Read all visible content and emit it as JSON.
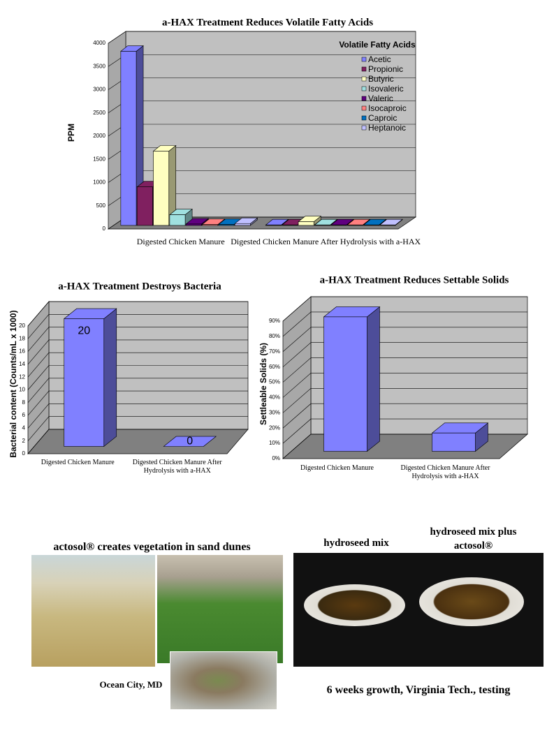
{
  "chart_data": [
    {
      "type": "bar",
      "title": "a-HAX Treatment Reduces Volatile Fatty Acids",
      "y_label": "PPM",
      "legend_title": "Volatile Fatty Acids",
      "categories": [
        "Digested Chicken Manure",
        "Digested Chicken Manure After Hydrolysis with a-HAX"
      ],
      "series": [
        {
          "name": "Acetic",
          "color": "#8080ff",
          "values": [
            3750,
            10
          ]
        },
        {
          "name": "Propionic",
          "color": "#802060",
          "values": [
            830,
            10
          ]
        },
        {
          "name": "Butyric",
          "color": "#ffffc0",
          "values": [
            1600,
            80
          ]
        },
        {
          "name": "Isovaleric",
          "color": "#a0e0e0",
          "values": [
            230,
            10
          ]
        },
        {
          "name": "Valeric",
          "color": "#600080",
          "values": [
            30,
            10
          ]
        },
        {
          "name": "Isocaproic",
          "color": "#ff8080",
          "values": [
            20,
            10
          ]
        },
        {
          "name": "Caproic",
          "color": "#0070c0",
          "values": [
            20,
            10
          ]
        },
        {
          "name": "Heptanoic",
          "color": "#c0c0ff",
          "values": [
            40,
            10
          ]
        }
      ],
      "ylim": [
        0,
        4000
      ],
      "yticks": [
        0,
        500,
        1000,
        1500,
        2000,
        2500,
        3000,
        3500,
        4000
      ],
      "grid": true,
      "legend": "top-right"
    },
    {
      "type": "bar",
      "title": "a-HAX Treatment Destroys Bacteria",
      "y_label": "Bacterial content (Counts/mL x 1000)",
      "categories": [
        "Digested Chicken Manure",
        "Digested Chicken Manure After Hydrolysis with a-HAX"
      ],
      "series": [
        {
          "name": "Bacteria",
          "color": "#8080ff",
          "values": [
            20,
            0
          ]
        }
      ],
      "ylim": [
        0,
        20
      ],
      "yticks": [
        0,
        2,
        4,
        6,
        8,
        10,
        12,
        14,
        16,
        18,
        20
      ],
      "grid": true,
      "data_labels": true,
      "legend": "none"
    },
    {
      "type": "bar",
      "title": "a-HAX Treatment Reduces Settable Solids",
      "y_label": "Settleable Solids (%)",
      "categories": [
        "Digested Chicken Manure",
        "Digested Chicken Manure After Hydrolysis with a-HAX"
      ],
      "series": [
        {
          "name": "Settleable Solids",
          "color": "#8080ff",
          "values": [
            88,
            12
          ]
        }
      ],
      "ylim": [
        0,
        90
      ],
      "yticks": [
        {
          "value": 0,
          "label": "0%"
        },
        {
          "value": 10,
          "label": "10%"
        },
        {
          "value": 20,
          "label": "20%"
        },
        {
          "value": 30,
          "label": "30%"
        },
        {
          "value": 40,
          "label": "40%"
        },
        {
          "value": 50,
          "label": "50%"
        },
        {
          "value": 60,
          "label": "60%"
        },
        {
          "value": 70,
          "label": "70%"
        },
        {
          "value": 80,
          "label": "80%"
        },
        {
          "value": 90,
          "label": "90%"
        }
      ],
      "grid": true,
      "legend": "none"
    }
  ],
  "photos": {
    "dunes_caption": "actosol® creates vegetation in sand dunes",
    "dunes_location": "Ocean City, MD",
    "hydroseed_left": "hydroseed mix",
    "hydroseed_right": "hydroseed mix plus actosol®",
    "hydroseed_caption": "6 weeks growth, Virginia Tech., testing"
  }
}
